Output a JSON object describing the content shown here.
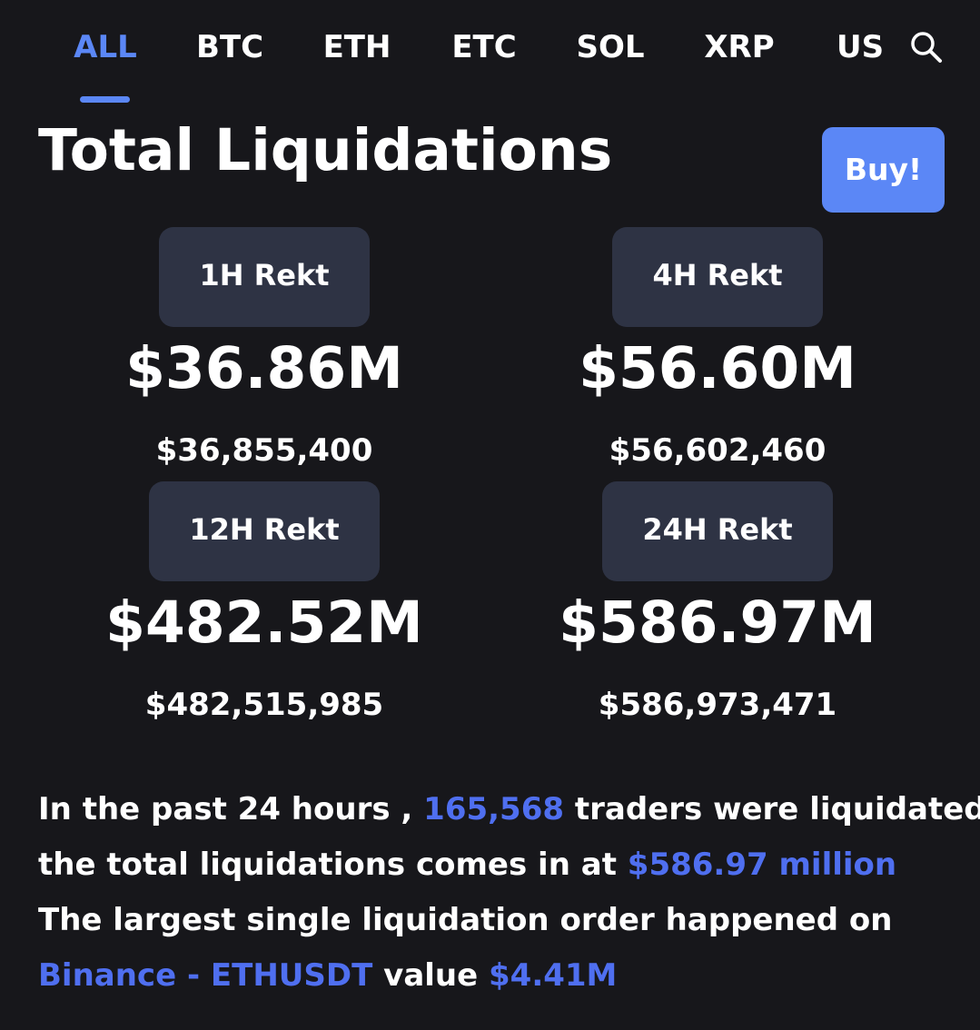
{
  "tabs": [
    {
      "label": "ALL",
      "active": true
    },
    {
      "label": "BTC",
      "active": false
    },
    {
      "label": "ETH",
      "active": false
    },
    {
      "label": "ETC",
      "active": false
    },
    {
      "label": "SOL",
      "active": false
    },
    {
      "label": "XRP",
      "active": false
    },
    {
      "label": "USDC",
      "active": false
    }
  ],
  "search_icon": "search-icon",
  "header": {
    "title": "Total Liquidations",
    "buy_label": "Buy!"
  },
  "stats": [
    {
      "period": "1H Rekt",
      "short": "$36.86M",
      "exact": "$36,855,400"
    },
    {
      "period": "4H Rekt",
      "short": "$56.60M",
      "exact": "$56,602,460"
    },
    {
      "period": "12H Rekt",
      "short": "$482.52M",
      "exact": "$482,515,985"
    },
    {
      "period": "24H Rekt",
      "short": "$586.97M",
      "exact": "$586,973,471"
    }
  ],
  "summary": {
    "l1_pre": "In the past 24 hours , ",
    "trader_count": "165,568",
    "l1_post": " traders were liquidated ,",
    "l2_pre": "the total liquidations comes in at ",
    "total": "$586.97 million",
    "l3": "The largest single liquidation order happened on",
    "exchange_pair": "Binance - ETHUSDT",
    "l4_mid": " value ",
    "largest_value": "$4.41M"
  },
  "colors": {
    "background": "#17171b",
    "accent": "#5b87f6",
    "highlight_text": "#4f6ff0",
    "chip": "#2e3344",
    "text": "#ffffff"
  }
}
